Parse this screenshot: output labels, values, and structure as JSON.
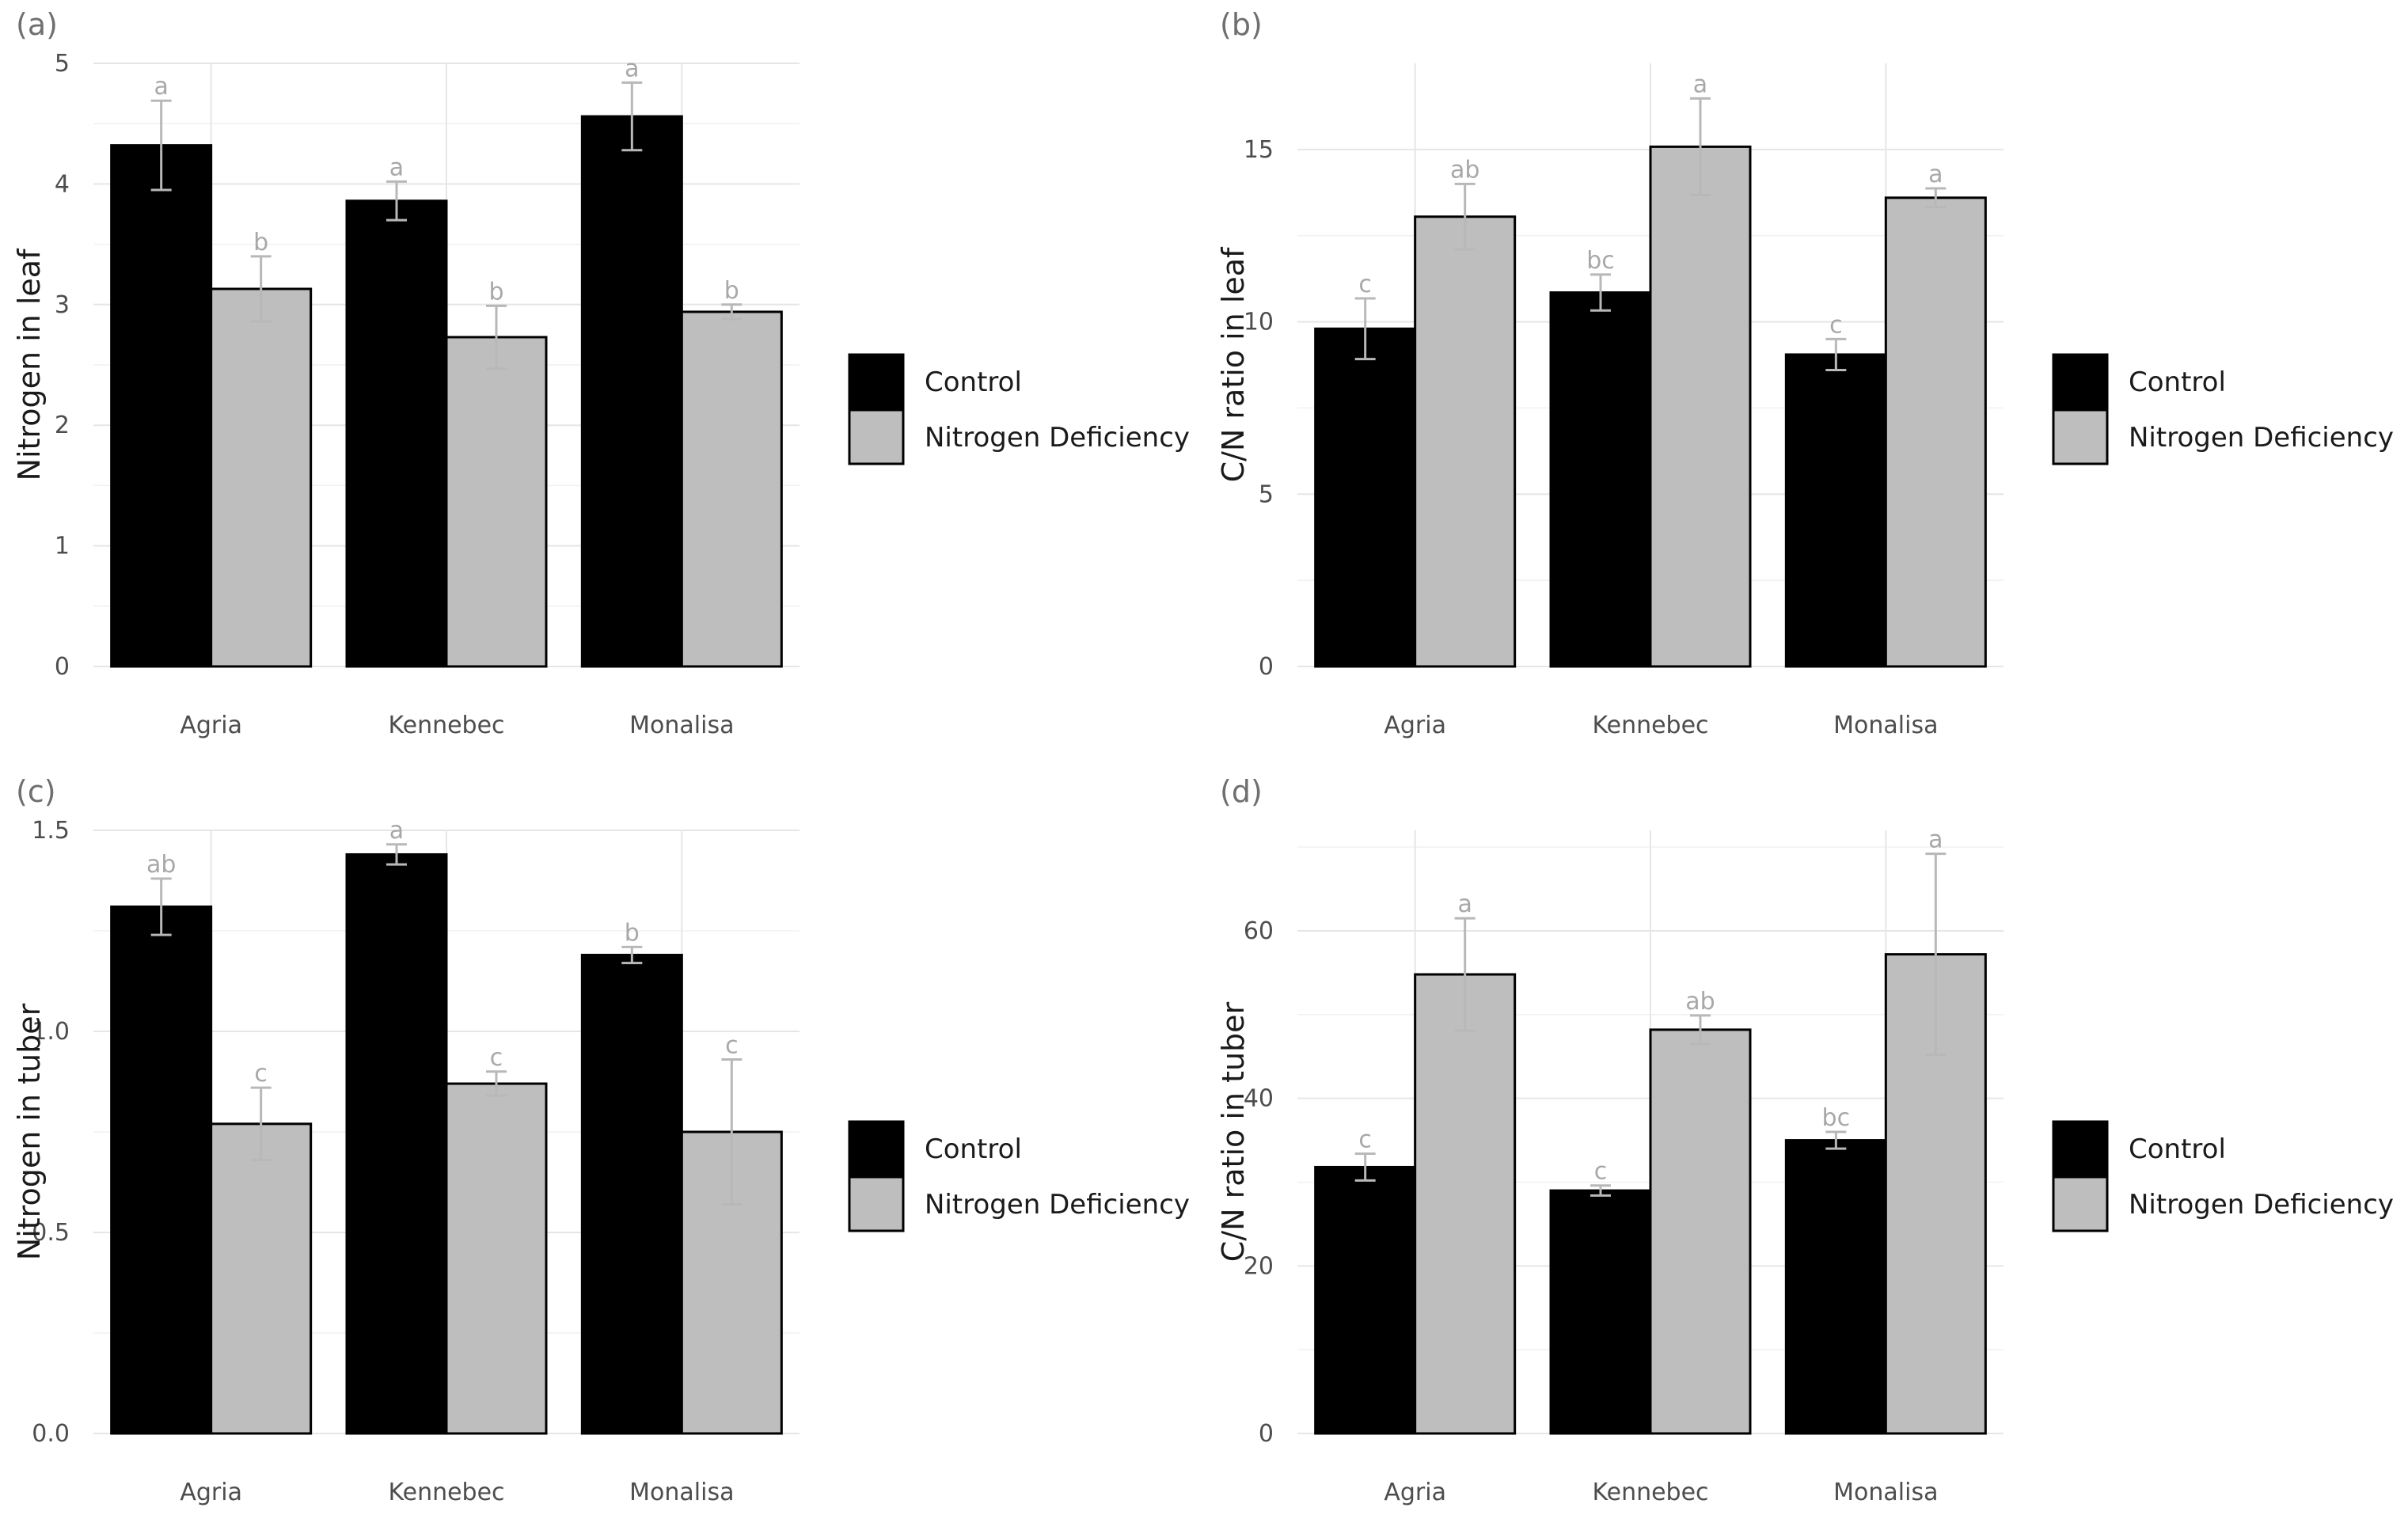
{
  "colors": {
    "control": "#000000",
    "deficiency": "#bebebe",
    "bar_outline": "#000000",
    "error_bar": "#b8b8b8",
    "significance": "#a8a8a8"
  },
  "chart_data": [
    {
      "type": "bar",
      "panel": "(a)",
      "ylabel": "Nitrogen in leaf",
      "categories": [
        "Agria",
        "Kennebec",
        "Monalisa"
      ],
      "ylim": [
        0,
        5
      ],
      "yticks": [
        0,
        1,
        2,
        3,
        4,
        5
      ],
      "ytick_labels": [
        "0",
        "1",
        "2",
        "3",
        "4",
        "5"
      ],
      "legend": [
        "Control",
        "Nitrogen Deficiency"
      ],
      "legend_position": "right",
      "series": [
        {
          "name": "Control",
          "values": [
            4.32,
            3.86,
            4.56
          ],
          "errors": [
            0.37,
            0.16,
            0.28
          ],
          "letters": [
            "a",
            "a",
            "a"
          ]
        },
        {
          "name": "Nitrogen Deficiency",
          "values": [
            3.13,
            2.73,
            2.94
          ],
          "errors": [
            0.27,
            0.26,
            0.06
          ],
          "letters": [
            "b",
            "b",
            "b"
          ]
        }
      ]
    },
    {
      "type": "bar",
      "panel": "(b)",
      "ylabel": "C/N ratio in leaf",
      "categories": [
        "Agria",
        "Kennebec",
        "Monalisa"
      ],
      "ylim": [
        0,
        17.5
      ],
      "yticks": [
        0,
        5,
        10,
        15
      ],
      "ytick_labels": [
        "0",
        "5",
        "10",
        "15"
      ],
      "legend": [
        "Control",
        "Nitrogen Deficiency"
      ],
      "legend_position": "right",
      "series": [
        {
          "name": "Control",
          "values": [
            9.8,
            10.85,
            9.05
          ],
          "errors": [
            0.88,
            0.52,
            0.45
          ],
          "letters": [
            "c",
            "bc",
            "c"
          ]
        },
        {
          "name": "Nitrogen Deficiency",
          "values": [
            13.05,
            15.08,
            13.6
          ],
          "errors": [
            0.95,
            1.4,
            0.27
          ],
          "letters": [
            "ab",
            "a",
            "a"
          ]
        }
      ]
    },
    {
      "type": "bar",
      "panel": "(c)",
      "ylabel": "Nitrogen in tuber",
      "categories": [
        "Agria",
        "Kennebec",
        "Monalisa"
      ],
      "ylim": [
        0,
        1.5
      ],
      "yticks": [
        0,
        0.5,
        1,
        1.5
      ],
      "ytick_labels": [
        "0.0",
        "0.5",
        "1.0",
        "1.5"
      ],
      "legend": [
        "Control",
        "Nitrogen Deficiency"
      ],
      "legend_position": "right",
      "series": [
        {
          "name": "Control",
          "values": [
            1.31,
            1.44,
            1.19
          ],
          "errors": [
            0.07,
            0.025,
            0.02
          ],
          "letters": [
            "ab",
            "a",
            "b"
          ]
        },
        {
          "name": "Nitrogen Deficiency",
          "values": [
            0.77,
            0.87,
            0.75
          ],
          "errors": [
            0.09,
            0.03,
            0.18
          ],
          "letters": [
            "c",
            "c",
            "c"
          ]
        }
      ]
    },
    {
      "type": "bar",
      "panel": "(d)",
      "ylabel": "C/N ratio in tuber",
      "categories": [
        "Agria",
        "Kennebec",
        "Monalisa"
      ],
      "ylim": [
        0,
        72
      ],
      "yticks": [
        0,
        20,
        40,
        60
      ],
      "ytick_labels": [
        "0",
        "20",
        "40",
        "60"
      ],
      "legend": [
        "Control",
        "Nitrogen Deficiency"
      ],
      "legend_position": "right",
      "series": [
        {
          "name": "Control",
          "values": [
            31.8,
            29.0,
            35.0
          ],
          "errors": [
            1.6,
            0.6,
            1.0
          ],
          "letters": [
            "c",
            "c",
            "bc"
          ]
        },
        {
          "name": "Nitrogen Deficiency",
          "values": [
            54.8,
            48.2,
            57.2
          ],
          "errors": [
            6.7,
            1.7,
            12.0
          ],
          "letters": [
            "a",
            "ab",
            "a"
          ]
        }
      ]
    }
  ]
}
